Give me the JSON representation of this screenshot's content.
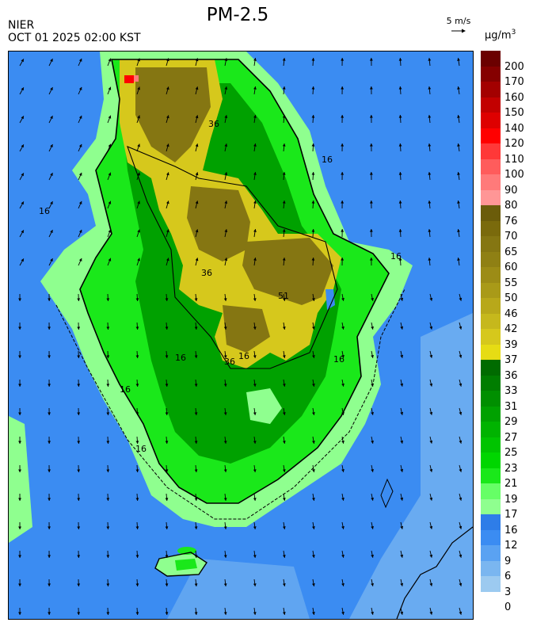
{
  "header": {
    "title": "PM-2.5",
    "source": "NIER",
    "timestamp": "OCT 01 2025 02:00 KST",
    "wind_reference": "5 m/s",
    "unit": "μg/m",
    "unit_superscript": "3"
  },
  "legend": {
    "levels": [
      {
        "label": "200",
        "color": "#6b0000"
      },
      {
        "label": "170",
        "color": "#850000"
      },
      {
        "label": "160",
        "color": "#a30000"
      },
      {
        "label": "150",
        "color": "#c20000"
      },
      {
        "label": "140",
        "color": "#de0000"
      },
      {
        "label": "120",
        "color": "#ff0000"
      },
      {
        "label": "110",
        "color": "#ff3838"
      },
      {
        "label": "100",
        "color": "#ff5c5c"
      },
      {
        "label": "90",
        "color": "#ff7a7a"
      },
      {
        "label": "80",
        "color": "#ff9696"
      },
      {
        "label": "76",
        "color": "#6b5c0a"
      },
      {
        "label": "70",
        "color": "#7a6a0c"
      },
      {
        "label": "65",
        "color": "#857612"
      },
      {
        "label": "60",
        "color": "#8f8014"
      },
      {
        "label": "55",
        "color": "#9c8c16"
      },
      {
        "label": "50",
        "color": "#a99a18"
      },
      {
        "label": "46",
        "color": "#b8a81a"
      },
      {
        "label": "42",
        "color": "#c6b81c"
      },
      {
        "label": "39",
        "color": "#d6c81c"
      },
      {
        "label": "37",
        "color": "#e6dc14"
      },
      {
        "label": "36",
        "color": "#006b00"
      },
      {
        "label": "33",
        "color": "#007d00"
      },
      {
        "label": "31",
        "color": "#008f00"
      },
      {
        "label": "29",
        "color": "#00a100"
      },
      {
        "label": "27",
        "color": "#00b300"
      },
      {
        "label": "25",
        "color": "#00c400"
      },
      {
        "label": "23",
        "color": "#00d600"
      },
      {
        "label": "21",
        "color": "#1ae81a"
      },
      {
        "label": "19",
        "color": "#66ff66"
      },
      {
        "label": "17",
        "color": "#8fff8f"
      },
      {
        "label": "16",
        "color": "#2e7de8"
      },
      {
        "label": "12",
        "color": "#3b8cf2"
      },
      {
        "label": "9",
        "color": "#5aa2f2"
      },
      {
        "label": "6",
        "color": "#7ab6f0"
      },
      {
        "label": "3",
        "color": "#9ccaf0"
      },
      {
        "label": "0",
        "color": ""
      }
    ]
  },
  "map": {
    "contour_labels": [
      "16",
      "16",
      "16",
      "16",
      "16",
      "16",
      "16",
      "16",
      "36",
      "36",
      "36",
      "51"
    ],
    "colors": {
      "ocean": "#3b8cf2",
      "ocean_light": "#7ab6f0",
      "coast_light": "#8fff8f",
      "land_green": "#1ae81a",
      "land_dark_green": "#00a100",
      "haze_yellow": "#d6c81c",
      "haze_olive": "#857612",
      "hotspot": "#ff0000"
    }
  }
}
